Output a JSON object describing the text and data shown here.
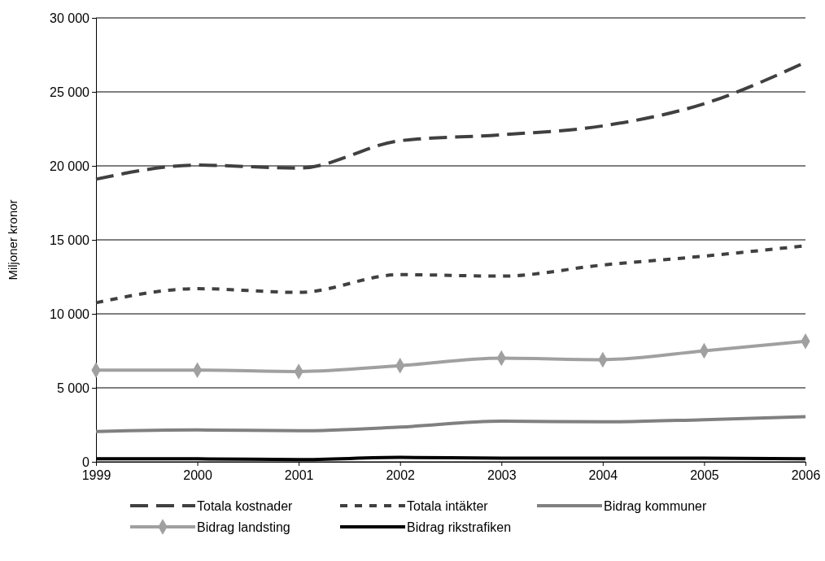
{
  "chart_data": {
    "type": "line",
    "ylabel": "Miljoner kronor",
    "categories": [
      "1999",
      "2000",
      "2001",
      "2002",
      "2003",
      "2004",
      "2005",
      "2006"
    ],
    "ylim": [
      0,
      30000
    ],
    "yticks": [
      {
        "value": 0,
        "label": "0"
      },
      {
        "value": 5000,
        "label": "5 000"
      },
      {
        "value": 10000,
        "label": "10 000"
      },
      {
        "value": 15000,
        "label": "15 000"
      },
      {
        "value": 20000,
        "label": "20 000"
      },
      {
        "value": 25000,
        "label": "25 000"
      },
      {
        "value": 30000,
        "label": "30 000"
      }
    ],
    "grid": "y",
    "legend": "bottom",
    "series": [
      {
        "name": "Totala kostnader",
        "color": "#404040",
        "line_style": "dashed",
        "marker": "none",
        "values": [
          19100,
          20050,
          19850,
          21700,
          22100,
          22700,
          24200,
          27000
        ]
      },
      {
        "name": "Totala intäkter",
        "color": "#404040",
        "line_style": "dotted",
        "marker": "none",
        "values": [
          10750,
          11700,
          11450,
          12650,
          12550,
          13300,
          13900,
          14600
        ]
      },
      {
        "name": "Bidrag kommuner",
        "color": "#808080",
        "line_style": "solid",
        "marker": "none",
        "values": [
          2050,
          2150,
          2100,
          2350,
          2750,
          2700,
          2850,
          3050
        ]
      },
      {
        "name": "Bidrag landsting",
        "color": "#a0a0a0",
        "line_style": "solid",
        "marker": "diamond",
        "values": [
          6200,
          6200,
          6100,
          6500,
          7000,
          6900,
          7500,
          8150
        ]
      },
      {
        "name": "Bidrag rikstrafiken",
        "color": "#000000",
        "line_style": "solid",
        "marker": "none",
        "values": [
          200,
          200,
          150,
          300,
          250,
          250,
          250,
          200
        ]
      }
    ]
  }
}
